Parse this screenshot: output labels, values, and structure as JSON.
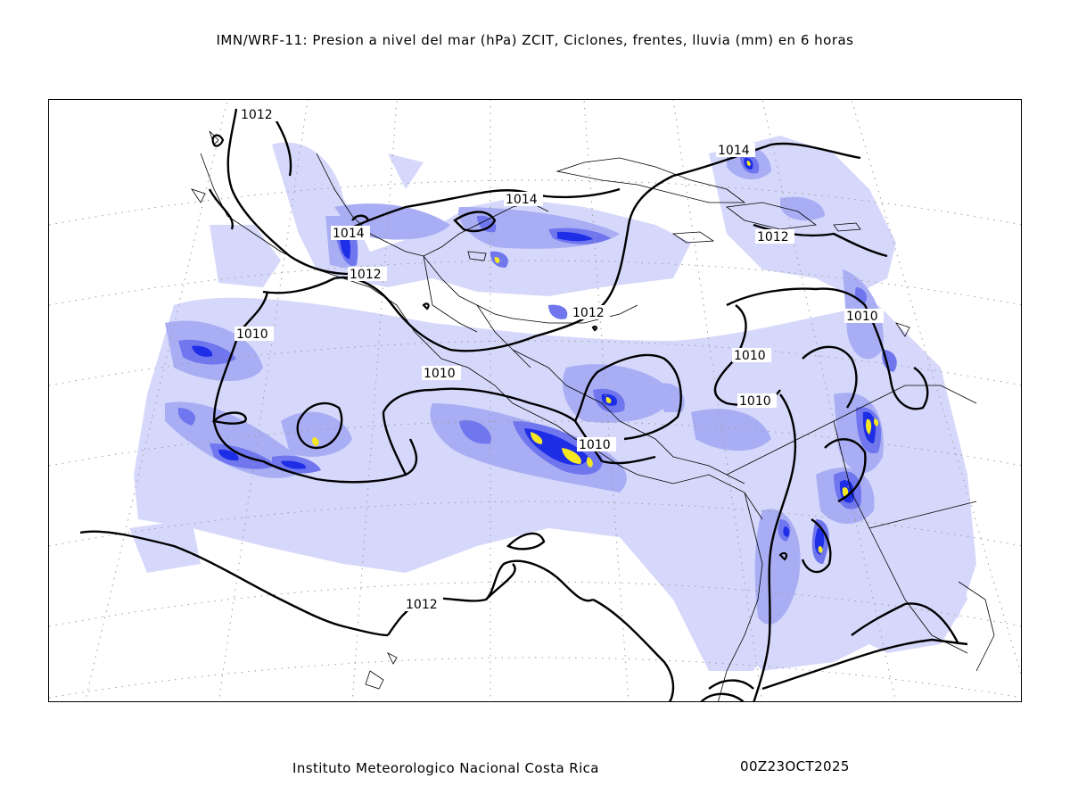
{
  "header": {
    "title": "IMN/WRF-11: Presion a nivel del mar (hPa) ZCIT, Ciclones, frentes, lluvia (mm) en 6 horas"
  },
  "footer": {
    "institution": "Instituto Meteorologico Nacional Costa Rica",
    "datetime": "00Z23OCT2025"
  },
  "map": {
    "isobars_hpa": [
      1010,
      1012,
      1014
    ],
    "isobar_labels": [
      "1012",
      "1014",
      "1014",
      "1012",
      "1012",
      "1014",
      "1012",
      "1010",
      "1010",
      "1010",
      "1010",
      "1010",
      "1010",
      "1012"
    ],
    "colors": {
      "rain_light": "#d4d6fb",
      "rain_medium": "#a9aef4",
      "rain_heavy": "#6f76ee",
      "rain_intense": "#1e2ee6",
      "rain_extreme": "#f5e823",
      "isobar": "#000000",
      "coastline": "#000000",
      "grid": "#9a9a9a"
    }
  }
}
